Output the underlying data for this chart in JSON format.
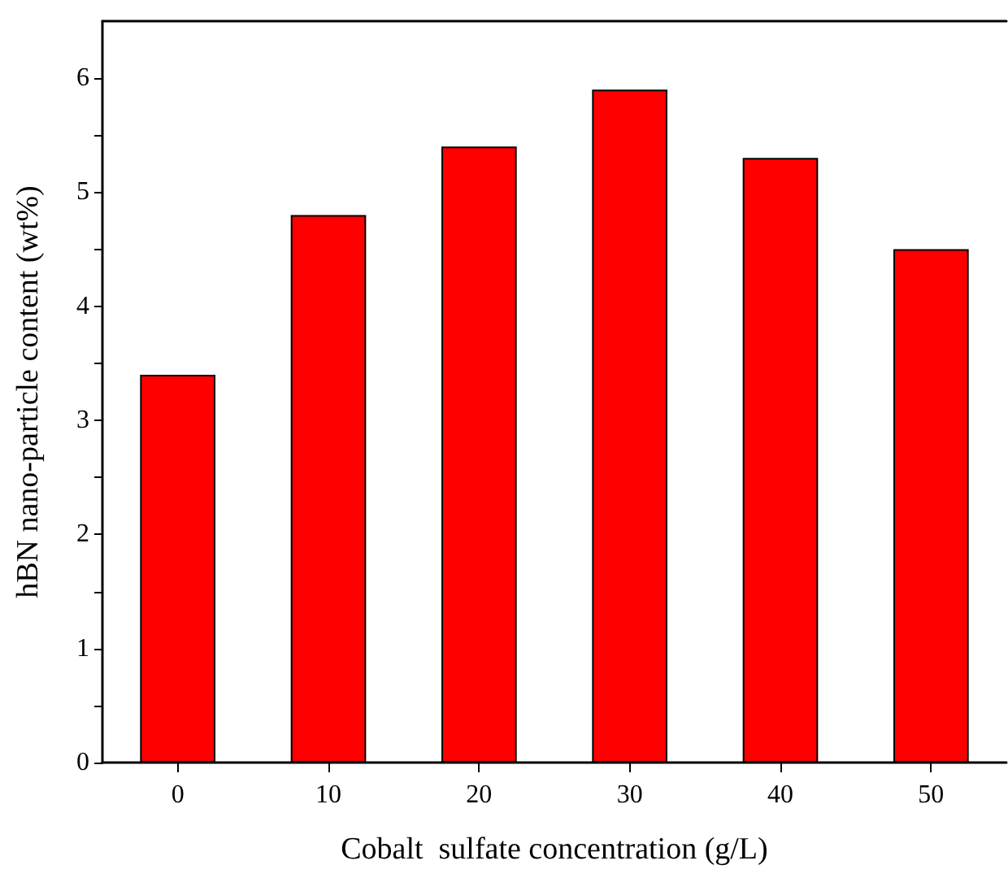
{
  "chart_data": {
    "type": "bar",
    "xlabel": "Cobalt  sulfate concentration (g/L)",
    "ylabel": "hBN nano-particle content (wt%)",
    "categories": [
      "0",
      "10",
      "20",
      "30",
      "40",
      "50"
    ],
    "values": [
      3.4,
      4.8,
      5.4,
      5.9,
      5.3,
      4.5
    ],
    "color": "#ff0000",
    "ylim": [
      0,
      6.5
    ],
    "yticks": [
      0,
      {
        "value": 0.5,
        "label": null
      },
      1,
      {
        "value": 1.5,
        "label": null
      },
      2,
      {
        "value": 2.5,
        "label": null
      },
      3,
      {
        "value": 3.5,
        "label": null
      },
      4,
      {
        "value": 4.5,
        "label": null
      },
      5,
      {
        "value": 5.5,
        "label": null
      },
      6
    ],
    "grid": false
  }
}
